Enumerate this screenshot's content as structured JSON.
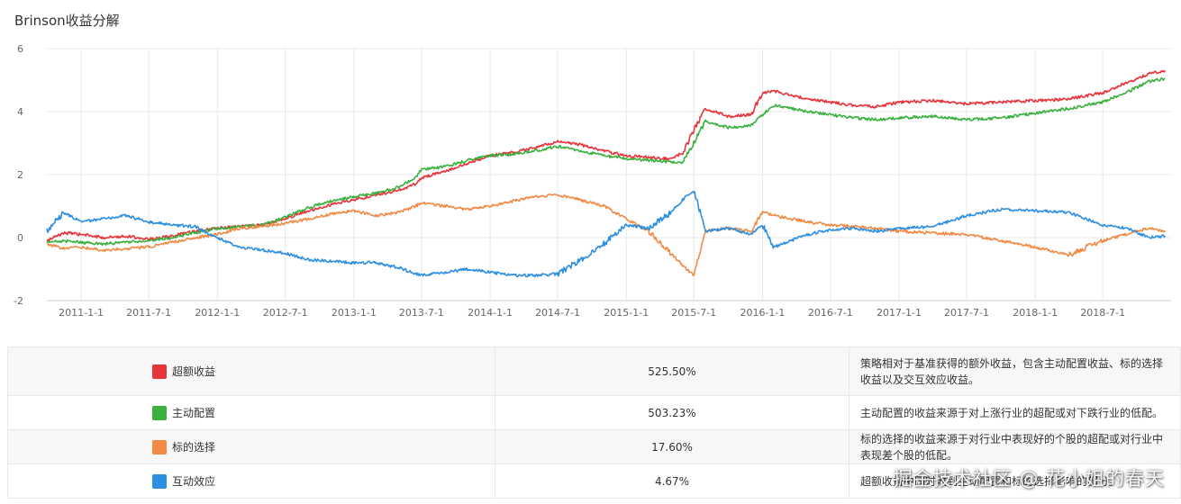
{
  "title": "Brinson收益分解",
  "chart_data": {
    "type": "line",
    "title": "Brinson收益分解",
    "ylim": [
      -2,
      6
    ],
    "yticks": [
      -2,
      0,
      2,
      4,
      6
    ],
    "xlim": [
      "2010-10-01",
      "2018-12-31"
    ],
    "xticks": [
      "2011-1-1",
      "2011-7-1",
      "2012-1-1",
      "2012-7-1",
      "2013-1-1",
      "2013-7-1",
      "2014-1-1",
      "2014-7-1",
      "2015-1-1",
      "2015-7-1",
      "2016-1-1",
      "2016-7-1",
      "2017-1-1",
      "2017-7-1",
      "2018-1-1",
      "2018-7-1"
    ],
    "grid": true,
    "series": [
      {
        "name": "超额收益",
        "color": "#e8333a",
        "x": [
          "2010-10-01",
          "2010-11-15",
          "2011-01-01",
          "2011-03-01",
          "2011-05-01",
          "2011-07-01",
          "2011-09-01",
          "2011-11-01",
          "2012-01-01",
          "2012-03-01",
          "2012-05-01",
          "2012-07-01",
          "2012-09-01",
          "2012-11-01",
          "2013-01-01",
          "2013-03-01",
          "2013-05-01",
          "2013-06-15",
          "2013-07-01",
          "2013-09-01",
          "2013-11-01",
          "2014-01-01",
          "2014-03-01",
          "2014-05-01",
          "2014-07-01",
          "2014-09-01",
          "2014-11-01",
          "2015-01-01",
          "2015-03-01",
          "2015-05-01",
          "2015-06-01",
          "2015-07-01",
          "2015-08-01",
          "2015-10-01",
          "2015-12-01",
          "2016-01-01",
          "2016-02-01",
          "2016-05-01",
          "2016-07-01",
          "2016-09-01",
          "2016-11-01",
          "2017-01-01",
          "2017-04-01",
          "2017-07-01",
          "2017-10-01",
          "2018-01-01",
          "2018-04-01",
          "2018-07-01",
          "2018-09-01",
          "2018-11-01",
          "2018-12-15"
        ],
        "y": [
          -0.1,
          0.15,
          0.1,
          0.0,
          0.05,
          -0.05,
          0.05,
          0.2,
          0.3,
          0.35,
          0.4,
          0.6,
          0.85,
          1.05,
          1.2,
          1.35,
          1.5,
          1.7,
          1.9,
          2.1,
          2.35,
          2.6,
          2.7,
          2.85,
          3.05,
          2.95,
          2.75,
          2.6,
          2.55,
          2.5,
          2.7,
          3.4,
          4.1,
          3.85,
          3.9,
          4.6,
          4.65,
          4.4,
          4.3,
          4.2,
          4.15,
          4.3,
          4.35,
          4.25,
          4.3,
          4.35,
          4.4,
          4.6,
          4.9,
          5.2,
          5.3
        ]
      },
      {
        "name": "主动配置",
        "color": "#3ab03e",
        "x": [
          "2010-10-01",
          "2010-11-15",
          "2011-01-01",
          "2011-03-01",
          "2011-05-01",
          "2011-07-01",
          "2011-09-01",
          "2011-11-01",
          "2012-01-01",
          "2012-03-01",
          "2012-05-01",
          "2012-07-01",
          "2012-09-01",
          "2012-11-01",
          "2013-01-01",
          "2013-03-01",
          "2013-05-01",
          "2013-06-15",
          "2013-07-01",
          "2013-09-01",
          "2013-11-01",
          "2014-01-01",
          "2014-03-01",
          "2014-05-01",
          "2014-07-01",
          "2014-09-01",
          "2014-11-01",
          "2015-01-01",
          "2015-03-01",
          "2015-05-01",
          "2015-06-01",
          "2015-07-01",
          "2015-08-01",
          "2015-10-01",
          "2015-12-01",
          "2016-01-01",
          "2016-02-01",
          "2016-05-01",
          "2016-07-01",
          "2016-09-01",
          "2016-11-01",
          "2017-01-01",
          "2017-04-01",
          "2017-07-01",
          "2017-10-01",
          "2018-01-01",
          "2018-04-01",
          "2018-07-01",
          "2018-09-01",
          "2018-11-01",
          "2018-12-15"
        ],
        "y": [
          -0.15,
          -0.1,
          -0.15,
          -0.2,
          -0.15,
          -0.1,
          0.0,
          0.15,
          0.3,
          0.35,
          0.4,
          0.65,
          0.95,
          1.15,
          1.3,
          1.4,
          1.6,
          1.9,
          2.15,
          2.25,
          2.45,
          2.6,
          2.65,
          2.75,
          2.9,
          2.75,
          2.6,
          2.5,
          2.45,
          2.4,
          2.35,
          3.0,
          3.7,
          3.5,
          3.55,
          3.9,
          4.2,
          4.0,
          3.9,
          3.8,
          3.75,
          3.8,
          3.85,
          3.75,
          3.8,
          3.95,
          4.1,
          4.3,
          4.6,
          4.95,
          5.05
        ]
      },
      {
        "name": "标的选择",
        "color": "#f08a45",
        "x": [
          "2010-10-01",
          "2010-11-15",
          "2011-01-01",
          "2011-03-01",
          "2011-05-01",
          "2011-07-01",
          "2011-09-01",
          "2011-11-01",
          "2012-01-01",
          "2012-03-01",
          "2012-05-01",
          "2012-07-01",
          "2012-09-01",
          "2012-11-01",
          "2013-01-01",
          "2013-03-01",
          "2013-05-01",
          "2013-06-15",
          "2013-07-01",
          "2013-09-01",
          "2013-11-01",
          "2014-01-01",
          "2014-03-01",
          "2014-05-01",
          "2014-07-01",
          "2014-09-01",
          "2014-11-01",
          "2015-01-01",
          "2015-03-01",
          "2015-05-01",
          "2015-06-01",
          "2015-07-01",
          "2015-08-01",
          "2015-10-01",
          "2015-12-01",
          "2016-01-01",
          "2016-02-01",
          "2016-05-01",
          "2016-07-01",
          "2016-09-01",
          "2016-11-01",
          "2017-01-01",
          "2017-04-01",
          "2017-07-01",
          "2017-10-01",
          "2018-01-01",
          "2018-04-01",
          "2018-07-01",
          "2018-09-01",
          "2018-11-01",
          "2018-12-15"
        ],
        "y": [
          -0.2,
          -0.35,
          -0.3,
          -0.4,
          -0.35,
          -0.3,
          -0.15,
          0.0,
          0.1,
          0.3,
          0.35,
          0.45,
          0.6,
          0.75,
          0.85,
          0.7,
          0.8,
          1.0,
          1.1,
          1.0,
          0.9,
          1.0,
          1.15,
          1.3,
          1.35,
          1.2,
          1.0,
          0.6,
          0.2,
          -0.5,
          -0.9,
          -1.2,
          0.2,
          0.3,
          0.2,
          0.8,
          0.7,
          0.5,
          0.4,
          0.35,
          0.3,
          0.2,
          0.15,
          0.1,
          -0.1,
          -0.3,
          -0.55,
          -0.1,
          0.1,
          0.3,
          0.18
        ]
      },
      {
        "name": "互动效应",
        "color": "#2e8ee0",
        "x": [
          "2010-10-01",
          "2010-11-15",
          "2011-01-01",
          "2011-03-01",
          "2011-05-01",
          "2011-07-01",
          "2011-09-01",
          "2011-11-01",
          "2012-01-01",
          "2012-03-01",
          "2012-05-01",
          "2012-07-01",
          "2012-09-01",
          "2012-11-01",
          "2013-01-01",
          "2013-03-01",
          "2013-05-01",
          "2013-06-15",
          "2013-07-01",
          "2013-09-01",
          "2013-11-01",
          "2014-01-01",
          "2014-03-01",
          "2014-05-01",
          "2014-07-01",
          "2014-09-01",
          "2014-11-01",
          "2015-01-01",
          "2015-03-01",
          "2015-05-01",
          "2015-06-01",
          "2015-07-01",
          "2015-08-01",
          "2015-10-01",
          "2015-12-01",
          "2016-01-01",
          "2016-02-01",
          "2016-05-01",
          "2016-07-01",
          "2016-09-01",
          "2016-11-01",
          "2017-01-01",
          "2017-04-01",
          "2017-07-01",
          "2017-10-01",
          "2018-01-01",
          "2018-04-01",
          "2018-07-01",
          "2018-09-01",
          "2018-11-01",
          "2018-12-15"
        ],
        "y": [
          0.2,
          0.8,
          0.5,
          0.6,
          0.7,
          0.5,
          0.4,
          0.35,
          0.0,
          -0.3,
          -0.4,
          -0.5,
          -0.7,
          -0.75,
          -0.8,
          -0.8,
          -0.95,
          -1.15,
          -1.2,
          -1.1,
          -1.0,
          -1.1,
          -1.2,
          -1.2,
          -1.15,
          -0.7,
          -0.2,
          0.4,
          0.3,
          0.8,
          1.2,
          1.5,
          0.2,
          0.3,
          0.1,
          0.4,
          -0.3,
          0.1,
          0.25,
          0.3,
          0.2,
          0.3,
          0.35,
          0.7,
          0.9,
          0.85,
          0.8,
          0.4,
          0.3,
          0.0,
          0.05
        ]
      }
    ]
  },
  "legend_rows": [
    {
      "name": "超额收益",
      "color": "#e8333a",
      "value": "525.50%",
      "desc": "策略相对于基准获得的额外收益，包含主动配置收益、标的选择收益以及交互效应收益。"
    },
    {
      "name": "主动配置",
      "color": "#3ab03e",
      "value": "503.23%",
      "desc": "主动配置的收益来源于对上涨行业的超配或对下跌行业的低配。"
    },
    {
      "name": "标的选择",
      "color": "#f08a45",
      "value": "17.60%",
      "desc": "标的选择的收益来源于对行业中表现好的个股的超配或对行业中表现差个股的低配。"
    },
    {
      "name": "互动效应",
      "color": "#2e8ee0",
      "value": "4.67%",
      "desc": "超额收益中同时收到主动配置和标的选择影响的部分。"
    }
  ],
  "watermark": "掘金技术社区 @ 花小姐的春天"
}
